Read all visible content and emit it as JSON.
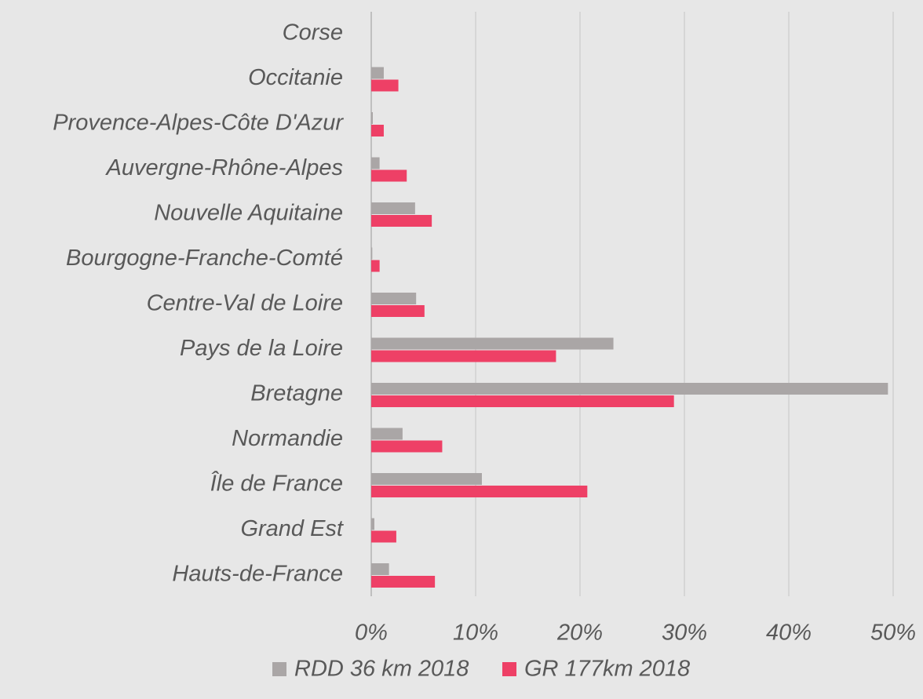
{
  "chart_data": {
    "type": "hbar",
    "categories": [
      "Corse",
      "Occitanie",
      "Provence-Alpes-Côte D'Azur",
      "Auvergne-Rhône-Alpes",
      "Nouvelle Aquitaine",
      "Bourgogne-Franche-Comté",
      "Centre-Val de Loire",
      "Pays de la Loire",
      "Bretagne",
      "Normandie",
      "Île de France",
      "Grand Est",
      "Hauts-de-France"
    ],
    "series": [
      {
        "name": "RDD 36 km 2018",
        "color": "#aaa6a6",
        "values": [
          0,
          1.2,
          0.15,
          0.8,
          4.2,
          0.1,
          4.3,
          23.2,
          49.5,
          3.0,
          10.6,
          0.3,
          1.7
        ]
      },
      {
        "name": "GR 177km 2018",
        "color": "#ee4066",
        "values": [
          0,
          2.6,
          1.2,
          3.4,
          5.8,
          0.8,
          5.1,
          17.7,
          29.0,
          6.8,
          20.7,
          2.4,
          6.1
        ]
      }
    ],
    "xlim": [
      0,
      50
    ],
    "xticks": [
      {
        "value": 0,
        "label": "0%"
      },
      {
        "value": 10,
        "label": "10%"
      },
      {
        "value": 20,
        "label": "20%"
      },
      {
        "value": 30,
        "label": "30%"
      },
      {
        "value": 40,
        "label": "40%"
      },
      {
        "value": 50,
        "label": "50%"
      }
    ],
    "grid": true,
    "legend": "bottom"
  }
}
